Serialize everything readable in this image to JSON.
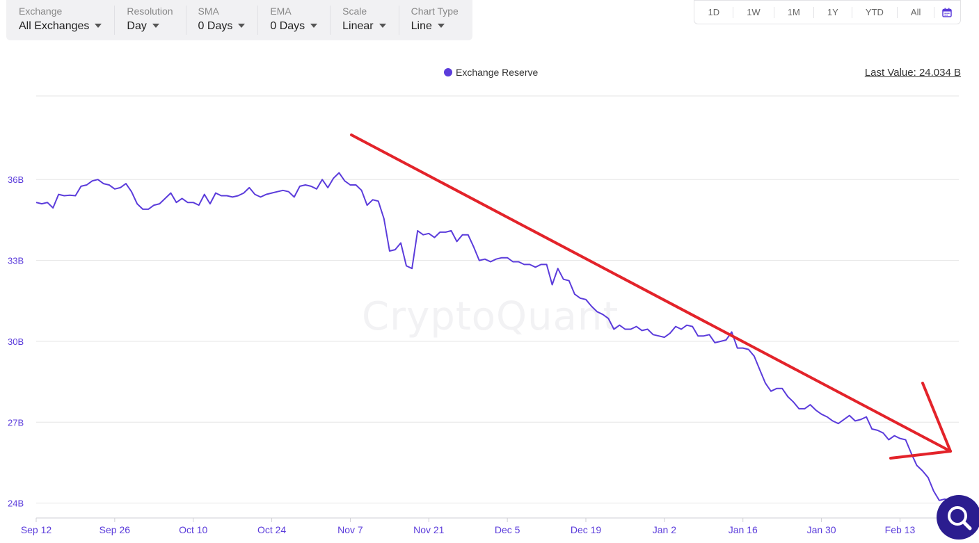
{
  "toolbar": {
    "exchange": {
      "label": "Exchange",
      "value": "All Exchanges"
    },
    "resolution": {
      "label": "Resolution",
      "value": "Day"
    },
    "sma": {
      "label": "SMA",
      "value": "0 Days"
    },
    "ema": {
      "label": "EMA",
      "value": "0 Days"
    },
    "scale": {
      "label": "Scale",
      "value": "Linear"
    },
    "chart_type": {
      "label": "Chart Type",
      "value": "Line"
    }
  },
  "ranges": [
    "1D",
    "1W",
    "1M",
    "1Y",
    "YTD",
    "All"
  ],
  "calendar_icon": "calendar-icon",
  "legend": {
    "series_name": "Exchange Reserve"
  },
  "last_value": {
    "label": "Last Value:",
    "value": "24.034 B"
  },
  "watermark": "CryptoQuant",
  "search_icon": "search-icon",
  "colors": {
    "series": "#5b3cdb",
    "annotation_arrow": "#e3232a",
    "fab": "#2b1d8f"
  },
  "chart_data": {
    "type": "line",
    "title": "",
    "xlabel": "",
    "ylabel": "",
    "x_tick_labels": [
      "Sep 12",
      "Sep 26",
      "Oct 10",
      "Oct 24",
      "Nov 7",
      "Nov 21",
      "Dec 5",
      "Dec 19",
      "Jan 2",
      "Jan 16",
      "Jan 30",
      "Feb 13"
    ],
    "y_tick_labels": [
      "24B",
      "27B",
      "30B",
      "33B",
      "36B"
    ],
    "y_ticks": [
      24,
      27,
      30,
      33,
      36
    ],
    "ylim": [
      23.45,
      39.1
    ],
    "x_day_range": [
      0,
      163
    ],
    "legend_position": "top-center",
    "grid": "horizontal",
    "series": [
      {
        "name": "Exchange Reserve",
        "color": "#5b3cdb",
        "x_days": [
          0,
          1,
          2,
          3,
          4,
          5,
          6,
          7,
          8,
          9,
          10,
          11,
          12,
          13,
          14,
          15,
          16,
          17,
          18,
          19,
          20,
          21,
          22,
          23,
          24,
          25,
          26,
          27,
          28,
          29,
          30,
          31,
          32,
          33,
          34,
          35,
          36,
          37,
          38,
          39,
          40,
          41,
          42,
          43,
          44,
          45,
          46,
          47,
          48,
          49,
          50,
          51,
          52,
          53,
          54,
          55,
          56,
          57,
          58,
          59,
          60,
          61,
          62,
          63,
          64,
          65,
          66,
          67,
          68,
          69,
          70,
          71,
          72,
          73,
          74,
          75,
          76,
          77,
          78,
          79,
          80,
          81,
          82,
          83,
          84,
          85,
          86,
          87,
          88,
          89,
          90,
          91,
          92,
          93,
          94,
          95,
          96,
          97,
          98,
          99,
          100,
          101,
          102,
          103,
          104,
          105,
          106,
          107,
          108,
          109,
          110,
          111,
          112,
          113,
          114,
          115,
          116,
          117,
          118,
          119,
          120,
          121,
          122,
          123,
          124,
          125,
          126,
          127,
          128,
          129,
          130,
          131,
          132,
          133,
          134,
          135,
          136,
          137,
          138,
          139,
          140,
          141,
          142,
          143,
          144,
          145,
          146,
          147,
          148,
          149,
          150,
          151,
          152,
          153,
          154,
          155,
          156,
          157,
          158,
          159,
          160,
          161,
          162,
          163
        ],
        "values_billion": [
          35.15,
          35.1,
          35.15,
          34.95,
          35.45,
          35.4,
          35.42,
          35.4,
          35.75,
          35.8,
          35.95,
          36.0,
          35.85,
          35.8,
          35.65,
          35.7,
          35.85,
          35.55,
          35.1,
          34.9,
          34.9,
          35.05,
          35.1,
          35.3,
          35.5,
          35.15,
          35.3,
          35.15,
          35.15,
          35.05,
          35.45,
          35.1,
          35.5,
          35.4,
          35.4,
          35.35,
          35.4,
          35.5,
          35.7,
          35.45,
          35.35,
          35.45,
          35.5,
          35.55,
          35.6,
          35.55,
          35.35,
          35.75,
          35.8,
          35.75,
          35.65,
          36.0,
          35.7,
          36.05,
          36.25,
          35.95,
          35.8,
          35.8,
          35.6,
          35.05,
          35.25,
          35.2,
          34.55,
          33.35,
          33.4,
          33.65,
          32.8,
          32.7,
          34.1,
          33.95,
          34.0,
          33.85,
          34.05,
          34.05,
          34.1,
          33.7,
          33.95,
          33.95,
          33.5,
          33.0,
          33.05,
          32.95,
          33.05,
          33.1,
          33.1,
          32.95,
          32.95,
          32.85,
          32.85,
          32.75,
          32.85,
          32.85,
          32.1,
          32.7,
          32.3,
          32.25,
          31.75,
          31.6,
          31.55,
          31.3,
          31.1,
          31.0,
          30.85,
          30.45,
          30.6,
          30.45,
          30.45,
          30.55,
          30.4,
          30.45,
          30.25,
          30.2,
          30.15,
          30.3,
          30.55,
          30.45,
          30.6,
          30.55,
          30.2,
          30.2,
          30.25,
          29.95,
          30.0,
          30.05,
          30.35,
          29.75,
          29.75,
          29.7,
          29.45,
          28.95,
          28.45,
          28.15,
          28.25,
          28.25,
          27.95,
          27.75,
          27.5,
          27.5,
          27.65,
          27.45,
          27.3,
          27.2,
          27.05,
          26.95,
          27.1,
          27.25,
          27.05,
          27.1,
          27.2,
          26.75,
          26.7,
          26.6,
          26.35,
          26.5,
          26.4,
          26.35,
          25.85,
          25.4,
          25.2,
          24.95,
          24.45,
          24.1,
          24.15,
          24.034
        ]
      }
    ]
  }
}
